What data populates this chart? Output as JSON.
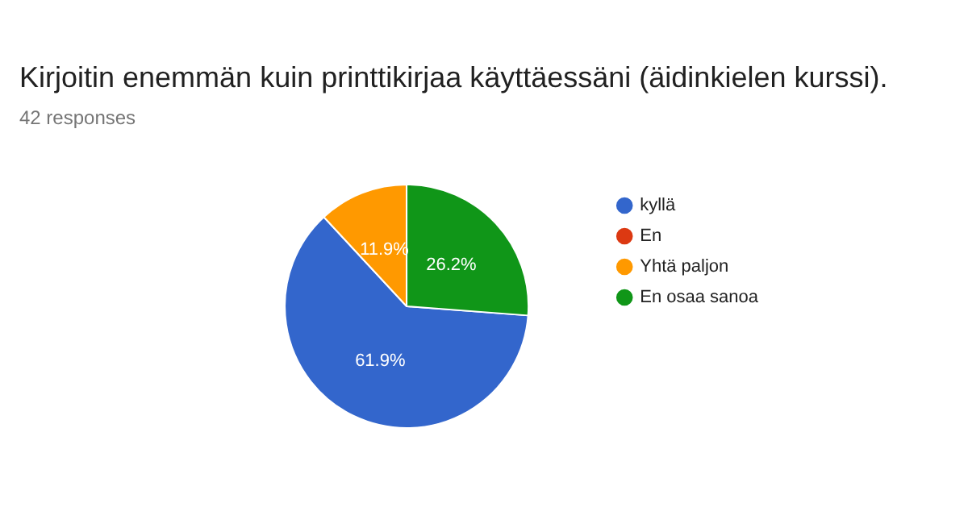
{
  "chart_data": {
    "type": "pie",
    "title": "Kirjoitin enemmän kuin printtikirjaa käyttäessäni (äidinkielen kurssi).",
    "subtitle": "42 responses",
    "categories": [
      "kyllä",
      "En",
      "Yhtä paljon",
      "En osaa sanoa"
    ],
    "values": [
      61.9,
      0,
      11.9,
      26.2
    ],
    "colors": [
      "#3366cc",
      "#dc3912",
      "#ff9900",
      "#109618"
    ],
    "value_labels": [
      "61.9%",
      null,
      "11.9%",
      "26.2%"
    ],
    "legend": "right"
  }
}
